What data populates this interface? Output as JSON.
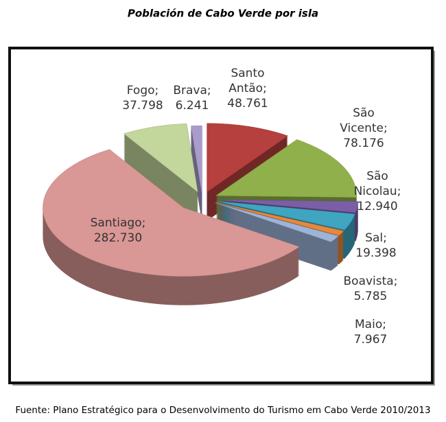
{
  "chart_data": {
    "type": "pie",
    "title": "Población de Cabo Verde por isla",
    "categories": [
      "Santo Antão",
      "São Vicente",
      "São Nicolau",
      "Sal",
      "Boavista",
      "Maio",
      "Santiago",
      "Fogo",
      "Brava"
    ],
    "values": [
      48761,
      78176,
      12940,
      19398,
      5785,
      7967,
      282730,
      37798,
      6241
    ],
    "value_labels": [
      "48.761",
      "78.176",
      "12.940",
      "19.398",
      "5.785",
      "7.967",
      "282.730",
      "37.798",
      "6.241"
    ],
    "separator": ";",
    "colors": [
      "#b5403d",
      "#8fb04a",
      "#7b5ea7",
      "#3fa5c0",
      "#e8883a",
      "#9db3d8",
      "#d99795",
      "#c3d69b",
      "#a99ccb"
    ],
    "source": "Fuente: Plano Estratégico para o Desenvolvimento do Turismo em Cabo Verde 2010/2013"
  }
}
